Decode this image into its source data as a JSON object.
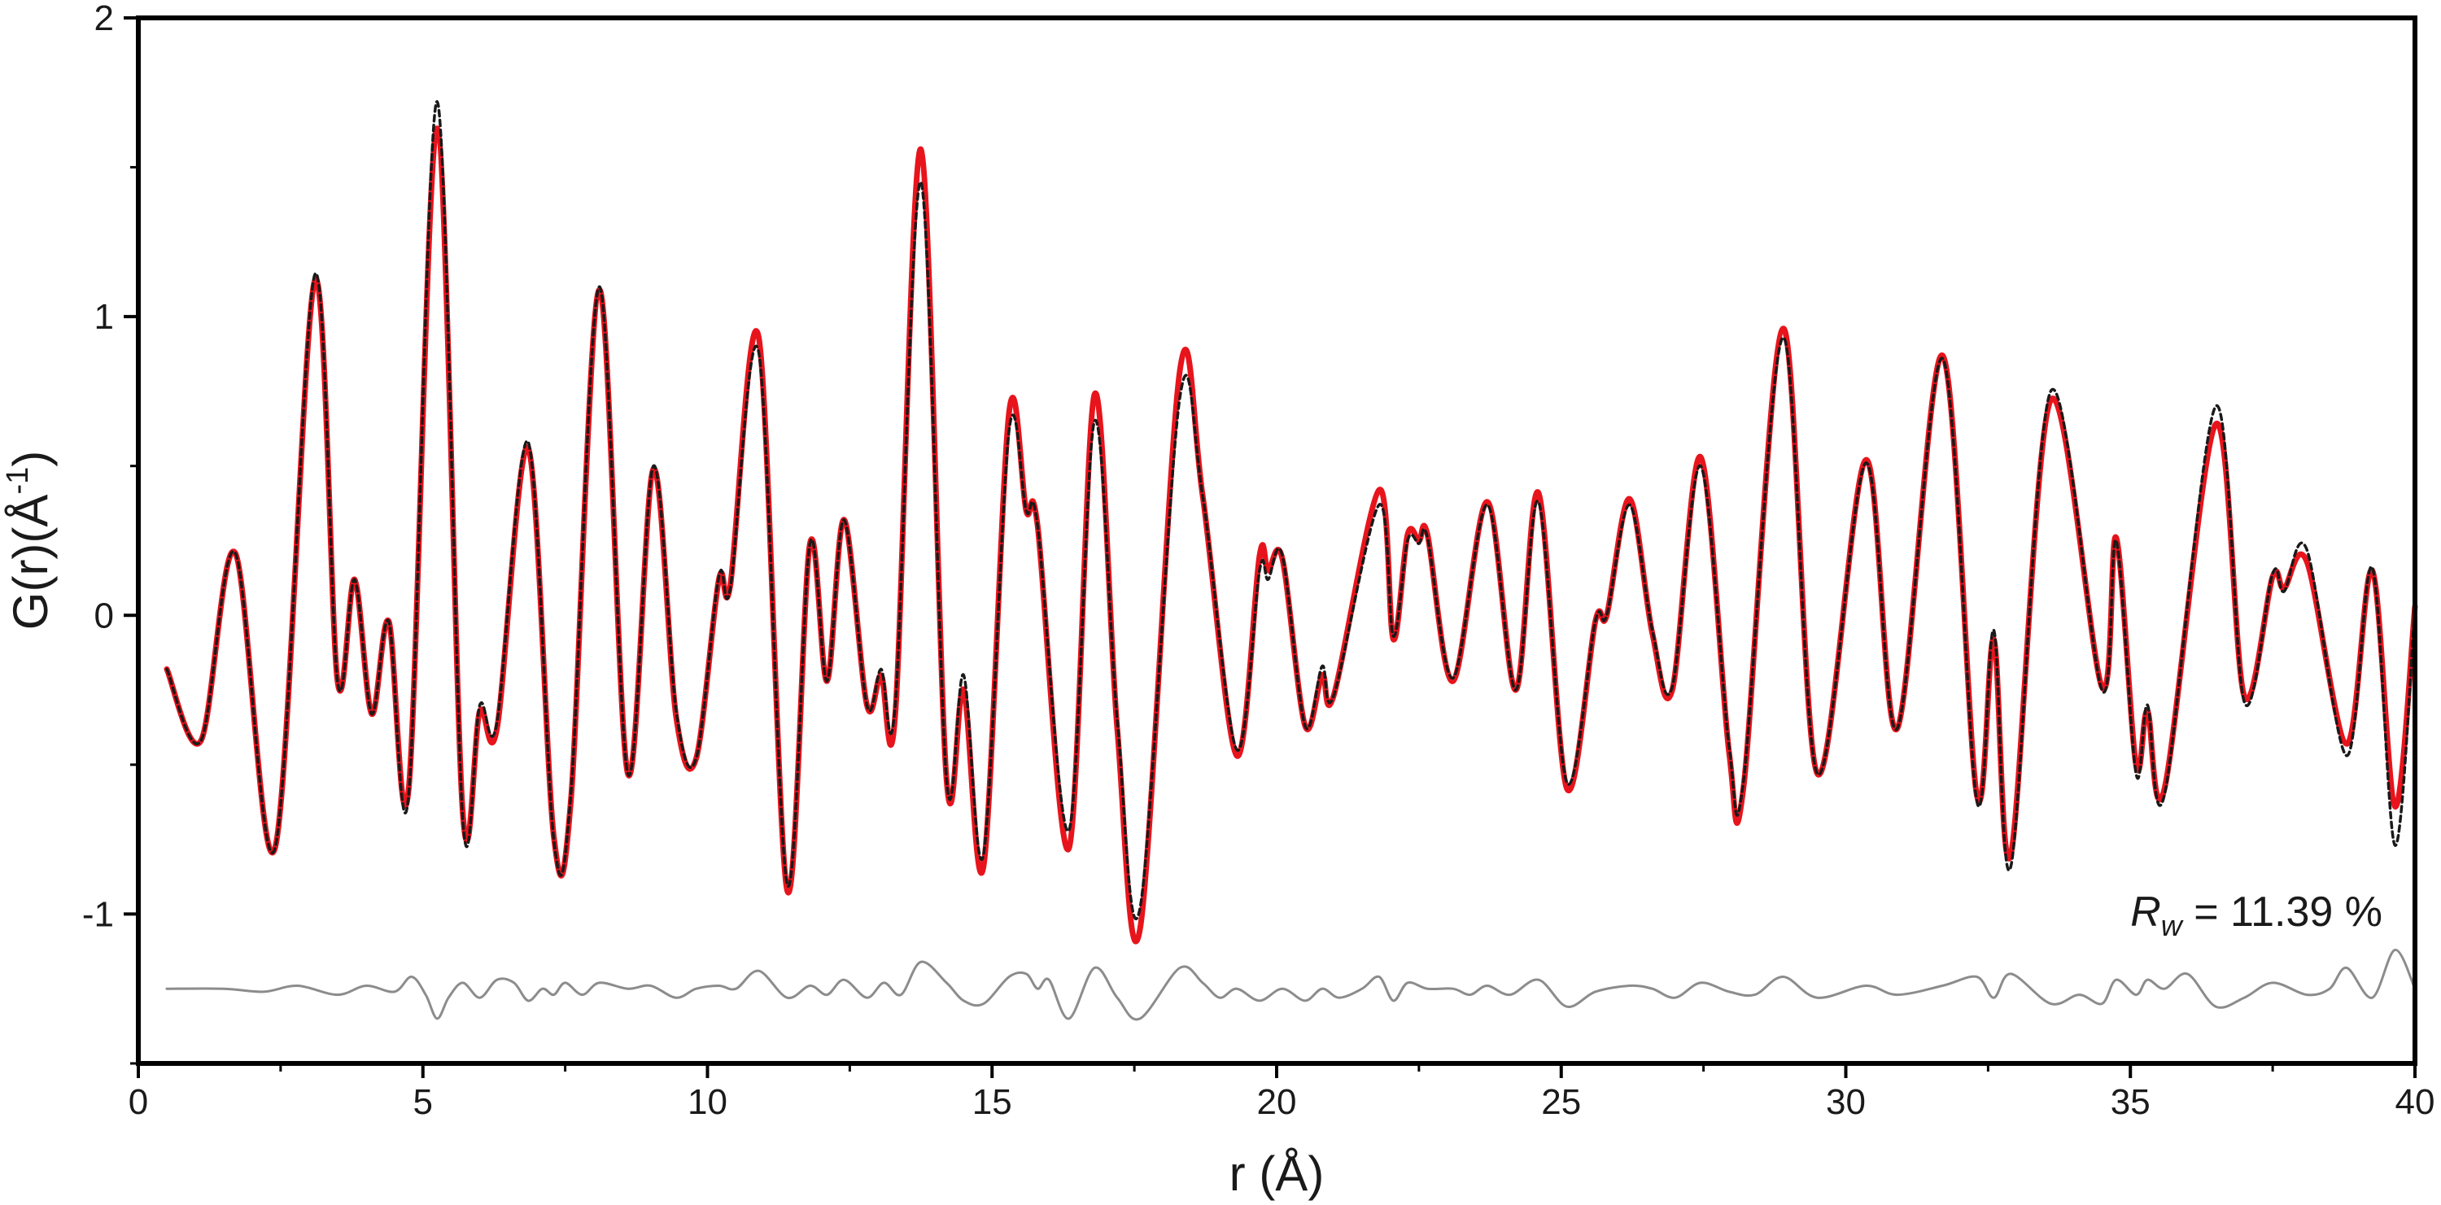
{
  "chart_data": {
    "type": "line",
    "xlabel": "r (Å)",
    "ylabel": "G(r)(Å",
    "ylabel_superscript": "-1",
    "ylabel_suffix": ")",
    "xlim": [
      0,
      40
    ],
    "ylim": [
      -1.5,
      2
    ],
    "x_ticks": [
      0,
      5,
      10,
      15,
      20,
      25,
      30,
      35,
      40
    ],
    "x_tick_labels": [
      "0",
      "5",
      "10",
      "15",
      "20",
      "25",
      "30",
      "35",
      "40"
    ],
    "y_ticks": [
      -1,
      0,
      1,
      2
    ],
    "y_tick_labels": [
      "-1",
      "0",
      "1",
      "2"
    ],
    "annotation": {
      "symbol": "R",
      "subscript": "w",
      "text": " = 11.39 %"
    },
    "grid": false,
    "series": [
      {
        "role": "observed",
        "color": "#1a1a1a",
        "style": "dashed",
        "points": [
          [
            0.5,
            -0.18
          ],
          [
            1.1,
            -0.42
          ],
          [
            1.7,
            0.21
          ],
          [
            2.4,
            -0.78
          ],
          [
            3.1,
            1.14
          ],
          [
            3.5,
            -0.22
          ],
          [
            3.8,
            0.12
          ],
          [
            4.1,
            -0.33
          ],
          [
            4.4,
            -0.02
          ],
          [
            4.75,
            -0.6
          ],
          [
            5.25,
            1.72
          ],
          [
            5.7,
            -0.68
          ],
          [
            6.0,
            -0.3
          ],
          [
            6.3,
            -0.36
          ],
          [
            6.85,
            0.58
          ],
          [
            7.3,
            -0.75
          ],
          [
            7.6,
            -0.6
          ],
          [
            8.1,
            1.1
          ],
          [
            8.6,
            -0.53
          ],
          [
            9.05,
            0.5
          ],
          [
            9.45,
            -0.32
          ],
          [
            9.8,
            -0.48
          ],
          [
            10.2,
            0.13
          ],
          [
            10.4,
            0.09
          ],
          [
            10.9,
            0.88
          ],
          [
            11.4,
            -0.9
          ],
          [
            11.8,
            0.24
          ],
          [
            12.1,
            -0.22
          ],
          [
            12.4,
            0.32
          ],
          [
            12.8,
            -0.3
          ],
          [
            13.05,
            -0.18
          ],
          [
            13.3,
            -0.3
          ],
          [
            13.75,
            1.45
          ],
          [
            14.2,
            -0.55
          ],
          [
            14.5,
            -0.2
          ],
          [
            14.85,
            -0.8
          ],
          [
            15.3,
            0.62
          ],
          [
            15.6,
            0.35
          ],
          [
            15.8,
            0.3
          ],
          [
            16.35,
            -0.72
          ],
          [
            16.8,
            0.65
          ],
          [
            17.2,
            -0.35
          ],
          [
            17.6,
            -0.98
          ],
          [
            18.3,
            0.73
          ],
          [
            18.7,
            0.4
          ],
          [
            19.3,
            -0.45
          ],
          [
            19.7,
            0.15
          ],
          [
            19.85,
            0.12
          ],
          [
            20.1,
            0.2
          ],
          [
            20.5,
            -0.37
          ],
          [
            20.8,
            -0.17
          ],
          [
            21.0,
            -0.27
          ],
          [
            21.8,
            0.37
          ],
          [
            22.05,
            -0.07
          ],
          [
            22.3,
            0.25
          ],
          [
            22.5,
            0.24
          ],
          [
            22.65,
            0.26
          ],
          [
            23.1,
            -0.21
          ],
          [
            23.7,
            0.37
          ],
          [
            24.2,
            -0.25
          ],
          [
            24.6,
            0.38
          ],
          [
            25.1,
            -0.56
          ],
          [
            25.6,
            -0.02
          ],
          [
            25.8,
            0.0
          ],
          [
            26.2,
            0.37
          ],
          [
            26.6,
            -0.05
          ],
          [
            26.95,
            -0.24
          ],
          [
            27.45,
            0.5
          ],
          [
            27.95,
            -0.44
          ],
          [
            28.2,
            -0.56
          ],
          [
            28.9,
            0.93
          ],
          [
            29.5,
            -0.53
          ],
          [
            30.35,
            0.51
          ],
          [
            30.9,
            -0.38
          ],
          [
            31.7,
            0.86
          ],
          [
            32.3,
            -0.62
          ],
          [
            32.6,
            -0.05
          ],
          [
            32.9,
            -0.84
          ],
          [
            33.6,
            0.75
          ],
          [
            34.5,
            -0.25
          ],
          [
            34.75,
            0.25
          ],
          [
            35.1,
            -0.53
          ],
          [
            35.3,
            -0.3
          ],
          [
            35.6,
            -0.6
          ],
          [
            36.5,
            0.7
          ],
          [
            37.0,
            -0.29
          ],
          [
            37.5,
            0.14
          ],
          [
            37.7,
            0.08
          ],
          [
            38.1,
            0.22
          ],
          [
            38.8,
            -0.47
          ],
          [
            39.25,
            0.16
          ],
          [
            39.65,
            -0.77
          ],
          [
            40.0,
            0.03
          ]
        ]
      },
      {
        "role": "calculated",
        "color": "#e8141c",
        "style": "solid",
        "points": [
          [
            0.5,
            -0.18
          ],
          [
            1.1,
            -0.42
          ],
          [
            1.7,
            0.21
          ],
          [
            2.4,
            -0.78
          ],
          [
            3.1,
            1.12
          ],
          [
            3.5,
            -0.22
          ],
          [
            3.8,
            0.12
          ],
          [
            4.1,
            -0.33
          ],
          [
            4.4,
            -0.02
          ],
          [
            4.75,
            -0.58
          ],
          [
            5.25,
            1.63
          ],
          [
            5.7,
            -0.66
          ],
          [
            6.0,
            -0.32
          ],
          [
            6.3,
            -0.38
          ],
          [
            6.85,
            0.56
          ],
          [
            7.3,
            -0.74
          ],
          [
            7.6,
            -0.62
          ],
          [
            8.1,
            1.09
          ],
          [
            8.6,
            -0.53
          ],
          [
            9.05,
            0.49
          ],
          [
            9.45,
            -0.34
          ],
          [
            9.8,
            -0.48
          ],
          [
            10.2,
            0.12
          ],
          [
            10.4,
            0.1
          ],
          [
            10.9,
            0.93
          ],
          [
            11.4,
            -0.92
          ],
          [
            11.8,
            0.24
          ],
          [
            12.1,
            -0.22
          ],
          [
            12.4,
            0.32
          ],
          [
            12.8,
            -0.3
          ],
          [
            13.05,
            -0.2
          ],
          [
            13.3,
            -0.33
          ],
          [
            13.75,
            1.56
          ],
          [
            14.2,
            -0.55
          ],
          [
            14.5,
            -0.25
          ],
          [
            14.85,
            -0.84
          ],
          [
            15.3,
            0.68
          ],
          [
            15.6,
            0.35
          ],
          [
            15.8,
            0.3
          ],
          [
            16.35,
            -0.78
          ],
          [
            16.8,
            0.74
          ],
          [
            17.2,
            -0.38
          ],
          [
            17.6,
            -1.05
          ],
          [
            18.3,
            0.82
          ],
          [
            18.7,
            0.4
          ],
          [
            19.3,
            -0.47
          ],
          [
            19.7,
            0.2
          ],
          [
            19.85,
            0.15
          ],
          [
            20.1,
            0.19
          ],
          [
            20.5,
            -0.37
          ],
          [
            20.8,
            -0.2
          ],
          [
            21.0,
            -0.27
          ],
          [
            21.8,
            0.42
          ],
          [
            22.05,
            -0.08
          ],
          [
            22.3,
            0.27
          ],
          [
            22.5,
            0.25
          ],
          [
            22.65,
            0.27
          ],
          [
            23.1,
            -0.22
          ],
          [
            23.7,
            0.38
          ],
          [
            24.2,
            -0.25
          ],
          [
            24.6,
            0.41
          ],
          [
            25.1,
            -0.58
          ],
          [
            25.6,
            -0.02
          ],
          [
            25.8,
            0.0
          ],
          [
            26.2,
            0.39
          ],
          [
            26.6,
            -0.06
          ],
          [
            26.95,
            -0.25
          ],
          [
            27.45,
            0.53
          ],
          [
            27.95,
            -0.46
          ],
          [
            28.2,
            -0.58
          ],
          [
            28.9,
            0.96
          ],
          [
            29.5,
            -0.53
          ],
          [
            30.35,
            0.52
          ],
          [
            30.9,
            -0.38
          ],
          [
            31.7,
            0.87
          ],
          [
            32.3,
            -0.6
          ],
          [
            32.6,
            -0.08
          ],
          [
            32.9,
            -0.8
          ],
          [
            33.6,
            0.72
          ],
          [
            34.5,
            -0.24
          ],
          [
            34.75,
            0.26
          ],
          [
            35.1,
            -0.5
          ],
          [
            35.3,
            -0.32
          ],
          [
            35.6,
            -0.58
          ],
          [
            36.5,
            0.64
          ],
          [
            37.0,
            -0.27
          ],
          [
            37.5,
            0.13
          ],
          [
            37.7,
            0.09
          ],
          [
            38.1,
            0.18
          ],
          [
            38.8,
            -0.43
          ],
          [
            39.25,
            0.15
          ],
          [
            39.65,
            -0.64
          ],
          [
            40.0,
            0.03
          ]
        ]
      },
      {
        "role": "difference",
        "color": "#8c8c8c",
        "style": "solid",
        "offset": -1.25,
        "points": [
          [
            0.5,
            0.0
          ],
          [
            1.5,
            0.0
          ],
          [
            2.2,
            -0.01
          ],
          [
            2.8,
            0.01
          ],
          [
            3.5,
            -0.02
          ],
          [
            4.0,
            0.01
          ],
          [
            4.5,
            -0.01
          ],
          [
            4.8,
            0.04
          ],
          [
            5.05,
            -0.02
          ],
          [
            5.25,
            -0.1
          ],
          [
            5.45,
            -0.03
          ],
          [
            5.7,
            0.02
          ],
          [
            6.0,
            -0.03
          ],
          [
            6.3,
            0.03
          ],
          [
            6.6,
            0.02
          ],
          [
            6.85,
            -0.04
          ],
          [
            7.1,
            0.0
          ],
          [
            7.3,
            -0.02
          ],
          [
            7.5,
            0.02
          ],
          [
            7.8,
            -0.02
          ],
          [
            8.1,
            0.02
          ],
          [
            8.6,
            0.0
          ],
          [
            9.0,
            0.01
          ],
          [
            9.45,
            -0.03
          ],
          [
            9.8,
            0.0
          ],
          [
            10.2,
            0.01
          ],
          [
            10.5,
            0.0
          ],
          [
            10.9,
            0.06
          ],
          [
            11.4,
            -0.03
          ],
          [
            11.8,
            0.01
          ],
          [
            12.1,
            -0.02
          ],
          [
            12.4,
            0.03
          ],
          [
            12.8,
            -0.03
          ],
          [
            13.1,
            0.02
          ],
          [
            13.4,
            -0.02
          ],
          [
            13.75,
            0.09
          ],
          [
            14.2,
            0.02
          ],
          [
            14.5,
            -0.04
          ],
          [
            14.85,
            -0.05
          ],
          [
            15.3,
            0.04
          ],
          [
            15.6,
            0.05
          ],
          [
            15.8,
            0.0
          ],
          [
            16.0,
            0.03
          ],
          [
            16.35,
            -0.1
          ],
          [
            16.8,
            0.07
          ],
          [
            17.2,
            -0.03
          ],
          [
            17.6,
            -0.1
          ],
          [
            18.3,
            0.07
          ],
          [
            18.7,
            0.02
          ],
          [
            19.0,
            -0.03
          ],
          [
            19.3,
            0.0
          ],
          [
            19.7,
            -0.04
          ],
          [
            20.1,
            0.0
          ],
          [
            20.5,
            -0.04
          ],
          [
            20.8,
            0.0
          ],
          [
            21.1,
            -0.03
          ],
          [
            21.5,
            0.0
          ],
          [
            21.8,
            0.04
          ],
          [
            22.05,
            -0.04
          ],
          [
            22.3,
            0.02
          ],
          [
            22.65,
            0.0
          ],
          [
            23.1,
            0.0
          ],
          [
            23.4,
            -0.02
          ],
          [
            23.7,
            0.01
          ],
          [
            24.1,
            -0.02
          ],
          [
            24.6,
            0.03
          ],
          [
            25.1,
            -0.06
          ],
          [
            25.6,
            -0.01
          ],
          [
            26.2,
            0.01
          ],
          [
            26.6,
            0.0
          ],
          [
            27.0,
            -0.03
          ],
          [
            27.45,
            0.02
          ],
          [
            27.95,
            -0.01
          ],
          [
            28.4,
            -0.02
          ],
          [
            28.9,
            0.04
          ],
          [
            29.5,
            -0.03
          ],
          [
            30.35,
            0.01
          ],
          [
            30.9,
            -0.02
          ],
          [
            31.7,
            0.01
          ],
          [
            32.3,
            0.04
          ],
          [
            32.6,
            -0.03
          ],
          [
            32.9,
            0.05
          ],
          [
            33.6,
            -0.05
          ],
          [
            34.1,
            -0.02
          ],
          [
            34.5,
            -0.05
          ],
          [
            34.75,
            0.03
          ],
          [
            35.1,
            -0.02
          ],
          [
            35.3,
            0.03
          ],
          [
            35.6,
            0.0
          ],
          [
            36.0,
            0.05
          ],
          [
            36.5,
            -0.06
          ],
          [
            37.0,
            -0.03
          ],
          [
            37.5,
            0.02
          ],
          [
            38.1,
            -0.02
          ],
          [
            38.5,
            0.0
          ],
          [
            38.8,
            0.07
          ],
          [
            39.25,
            -0.03
          ],
          [
            39.65,
            0.13
          ],
          [
            40.0,
            0.0
          ]
        ]
      }
    ]
  }
}
